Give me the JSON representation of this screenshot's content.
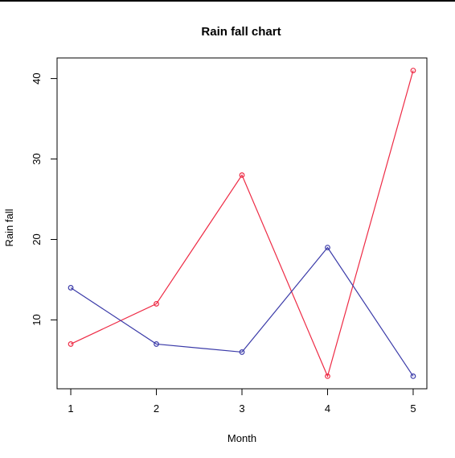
{
  "chart_data": {
    "type": "line",
    "title": "Rain fall chart",
    "xlabel": "Month",
    "ylabel": "Rain fall",
    "x": [
      1,
      2,
      3,
      4,
      5
    ],
    "x_ticks": [
      "1",
      "2",
      "3",
      "4",
      "5"
    ],
    "y_ticks": [
      "10",
      "20",
      "30",
      "40"
    ],
    "xlim": [
      0.84,
      5.16
    ],
    "ylim": [
      1.44,
      42.56
    ],
    "grid": false,
    "legend": "none",
    "series": [
      {
        "values": [
          7,
          12,
          28,
          3,
          41
        ],
        "color": "#ee2b45",
        "marker": "open-circle"
      },
      {
        "values": [
          14,
          7,
          6,
          19,
          3
        ],
        "color": "#3a3aa8",
        "marker": "open-circle"
      }
    ]
  }
}
